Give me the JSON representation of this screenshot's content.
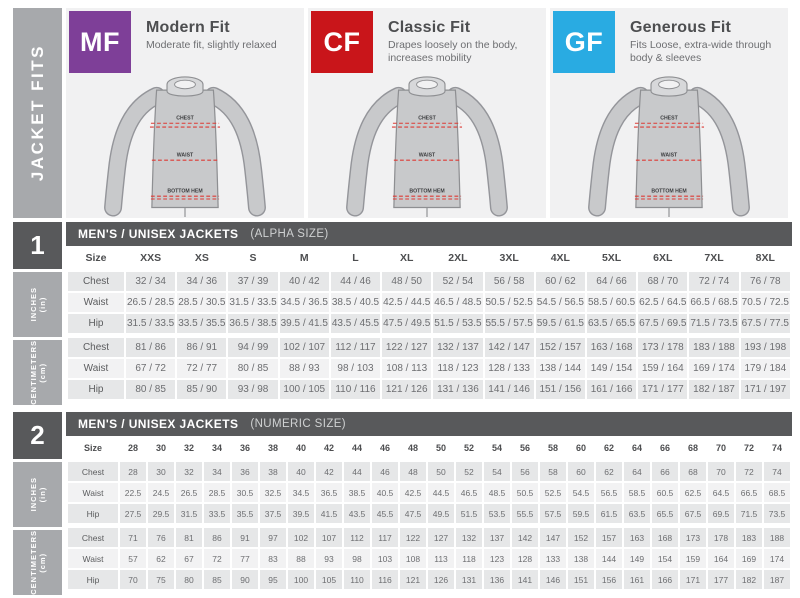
{
  "sidebar": {
    "title": "JACKET FITS"
  },
  "fits": [
    {
      "code": "MF",
      "name": "Modern Fit",
      "description": "Moderate fit, slightly relaxed",
      "color": "#7e3f98"
    },
    {
      "code": "CF",
      "name": "Classic Fit",
      "description": "Drapes loosely on the body, increases mobility",
      "color": "#c9151a"
    },
    {
      "code": "GF",
      "name": "Generous Fit",
      "description": "Fits Loose, extra-wide through body & sleeves",
      "color": "#29abe2"
    }
  ],
  "jacket": {
    "labels": [
      "CHEST",
      "WAIST",
      "BOTTOM HEM"
    ]
  },
  "tables": [
    {
      "number": "1",
      "title": "MEN'S / UNISEX JACKETS",
      "subtitle": "(ALPHA SIZE)",
      "size_label": "Size",
      "sizes": [
        "XXS",
        "XS",
        "S",
        "M",
        "L",
        "XL",
        "2XL",
        "3XL",
        "4XL",
        "5XL",
        "6XL",
        "7XL",
        "8XL"
      ],
      "sections": [
        {
          "label": "INCHES",
          "sublabel": "(in)",
          "rows": [
            {
              "label": "Chest",
              "values": [
                "32 / 34",
                "34 / 36",
                "37 / 39",
                "40 / 42",
                "44 / 46",
                "48 / 50",
                "52 / 54",
                "56 / 58",
                "60 / 62",
                "64 / 66",
                "68 / 70",
                "72 / 74",
                "76 / 78"
              ]
            },
            {
              "label": "Waist",
              "values": [
                "26.5 / 28.5",
                "28.5 / 30.5",
                "31.5 / 33.5",
                "34.5 / 36.5",
                "38.5 / 40.5",
                "42.5 / 44.5",
                "46.5 / 48.5",
                "50.5 / 52.5",
                "54.5 / 56.5",
                "58.5 / 60.5",
                "62.5 / 64.5",
                "66.5 / 68.5",
                "70.5 / 72.5"
              ]
            },
            {
              "label": "Hip",
              "values": [
                "31.5 / 33.5",
                "33.5 / 35.5",
                "36.5 / 38.5",
                "39.5 / 41.5",
                "43.5 / 45.5",
                "47.5 / 49.5",
                "51.5 / 53.5",
                "55.5 / 57.5",
                "59.5 / 61.5",
                "63.5 / 65.5",
                "67.5 / 69.5",
                "71.5 / 73.5",
                "67.5 / 77.5"
              ]
            }
          ]
        },
        {
          "label": "CENTIMETERS",
          "sublabel": "(cm)",
          "rows": [
            {
              "label": "Chest",
              "values": [
                "81 / 86",
                "86 / 91",
                "94 / 99",
                "102 / 107",
                "112 / 117",
                "122 / 127",
                "132 / 137",
                "142 / 147",
                "152 / 157",
                "163 / 168",
                "173 / 178",
                "183 / 188",
                "193 / 198"
              ]
            },
            {
              "label": "Waist",
              "values": [
                "67 / 72",
                "72 / 77",
                "80 / 85",
                "88 / 93",
                "98 / 103",
                "108 / 113",
                "118 / 123",
                "128 / 133",
                "138 / 144",
                "149 / 154",
                "159 / 164",
                "169 / 174",
                "179 / 184"
              ]
            },
            {
              "label": "Hip",
              "values": [
                "80 / 85",
                "85 / 90",
                "93 / 98",
                "100 / 105",
                "110 / 116",
                "121 / 126",
                "131 / 136",
                "141 / 146",
                "151 / 156",
                "161 / 166",
                "171 / 177",
                "182 / 187",
                "171 / 197"
              ]
            }
          ]
        }
      ]
    },
    {
      "number": "2",
      "title": "MEN'S / UNISEX JACKETS",
      "subtitle": "(NUMERIC SIZE)",
      "size_label": "Size",
      "sizes": [
        "28",
        "30",
        "32",
        "34",
        "36",
        "38",
        "40",
        "42",
        "44",
        "46",
        "48",
        "50",
        "52",
        "54",
        "56",
        "58",
        "60",
        "62",
        "64",
        "66",
        "68",
        "70",
        "72",
        "74"
      ],
      "sections": [
        {
          "label": "INCHES",
          "sublabel": "(in)",
          "rows": [
            {
              "label": "Chest",
              "values": [
                "28",
                "30",
                "32",
                "34",
                "36",
                "38",
                "40",
                "42",
                "44",
                "46",
                "48",
                "50",
                "52",
                "54",
                "56",
                "58",
                "60",
                "62",
                "64",
                "66",
                "68",
                "70",
                "72",
                "74"
              ]
            },
            {
              "label": "Waist",
              "values": [
                "22.5",
                "24.5",
                "26.5",
                "28.5",
                "30.5",
                "32.5",
                "34.5",
                "36.5",
                "38.5",
                "40.5",
                "42.5",
                "44.5",
                "46.5",
                "48.5",
                "50.5",
                "52.5",
                "54.5",
                "56.5",
                "58.5",
                "60.5",
                "62.5",
                "64.5",
                "66.5",
                "68.5"
              ]
            },
            {
              "label": "Hip",
              "values": [
                "27.5",
                "29.5",
                "31.5",
                "33.5",
                "35.5",
                "37.5",
                "39.5",
                "41.5",
                "43.5",
                "45.5",
                "47.5",
                "49.5",
                "51.5",
                "53.5",
                "55.5",
                "57.5",
                "59.5",
                "61.5",
                "63.5",
                "65.5",
                "67.5",
                "69.5",
                "71.5",
                "73.5"
              ]
            }
          ]
        },
        {
          "label": "CENTIMETERS",
          "sublabel": "(cm)",
          "rows": [
            {
              "label": "Chest",
              "values": [
                "71",
                "76",
                "81",
                "86",
                "91",
                "97",
                "102",
                "107",
                "112",
                "117",
                "122",
                "127",
                "132",
                "137",
                "142",
                "147",
                "152",
                "157",
                "163",
                "168",
                "173",
                "178",
                "183",
                "188"
              ]
            },
            {
              "label": "Waist",
              "values": [
                "57",
                "62",
                "67",
                "72",
                "77",
                "83",
                "88",
                "93",
                "98",
                "103",
                "108",
                "113",
                "118",
                "123",
                "128",
                "133",
                "138",
                "144",
                "149",
                "154",
                "159",
                "164",
                "169",
                "174"
              ]
            },
            {
              "label": "Hip",
              "values": [
                "70",
                "75",
                "80",
                "85",
                "90",
                "95",
                "100",
                "105",
                "110",
                "116",
                "121",
                "126",
                "131",
                "136",
                "141",
                "146",
                "151",
                "156",
                "161",
                "166",
                "171",
                "177",
                "182",
                "187"
              ]
            }
          ]
        }
      ]
    }
  ]
}
